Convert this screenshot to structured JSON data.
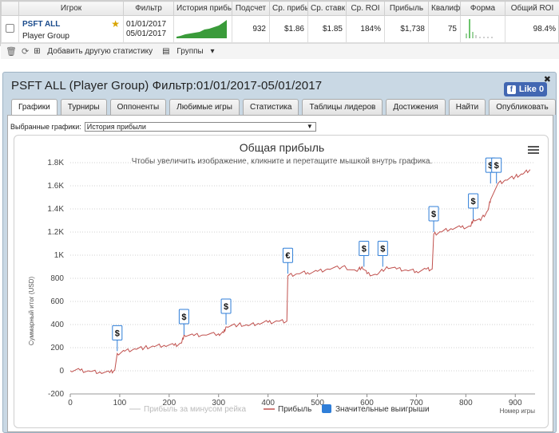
{
  "table": {
    "headers": {
      "player": "Игрок",
      "filter": "Фильтр",
      "history": "История прибыль",
      "count": "Подсчет",
      "avg_profit": "Ср. прибы",
      "avg_stake": "Ср. ставк",
      "avg_roi": "Ср. ROI",
      "profit": "Прибыль",
      "ability": "Квалиф",
      "form": "Форма",
      "total_roi": "Общий ROI"
    },
    "row": {
      "player": "PSFT ALL",
      "group": "Player Group",
      "filter_from": "01/01/2017",
      "filter_to": "05/01/2017",
      "count": "932",
      "avg_profit": "$1.86",
      "avg_stake": "$1.85",
      "avg_roi": "184%",
      "profit": "$1,738",
      "ability": "75",
      "total_roi": "98.4%"
    }
  },
  "toolbar": {
    "add_stats": "Добавить другую статистику",
    "groups": "Группы"
  },
  "panel": {
    "title": "PSFT ALL (Player Group) Фильтр:01/01/2017-05/01/2017",
    "like": "Like 0"
  },
  "tabs": [
    "Графики",
    "Турниры",
    "Оппоненты",
    "Любимые игры",
    "Статистика",
    "Таблицы лидеров",
    "Достижения",
    "Найти",
    "Опубликовать"
  ],
  "chart_select": {
    "label": "Выбранные графики:",
    "value": "История прибыли"
  },
  "chart_data": {
    "type": "line",
    "title": "Общая прибыль",
    "subtitle": "Чтобы увеличить изображение, кликните и перетащите мышкой внутрь графика.",
    "ylabel": "Суммарный итог (USD)",
    "xlabel": "Номер игры",
    "xlim": [
      0,
      940
    ],
    "ylim": [
      -200,
      1800
    ],
    "xticks": [
      "0",
      "100",
      "200",
      "300",
      "400",
      "500",
      "600",
      "700",
      "800",
      "900"
    ],
    "yticks": [
      "-200",
      "0",
      "200",
      "400",
      "600",
      "800",
      "1K",
      "1.2K",
      "1.4K",
      "1.6K",
      "1.8K"
    ],
    "legend": [
      "Прибыль за минусом рейка",
      "Прибыль",
      "Значительные выигрыши"
    ],
    "series": [
      {
        "name": "Прибыль",
        "color": "#c0504d",
        "points": [
          [
            0,
            0
          ],
          [
            20,
            5
          ],
          [
            40,
            -5
          ],
          [
            60,
            -10
          ],
          [
            80,
            -15
          ],
          [
            90,
            5
          ],
          [
            95,
            150
          ],
          [
            110,
            170
          ],
          [
            130,
            190
          ],
          [
            150,
            200
          ],
          [
            170,
            210
          ],
          [
            190,
            220
          ],
          [
            210,
            220
          ],
          [
            225,
            240
          ],
          [
            230,
            310
          ],
          [
            250,
            305
          ],
          [
            270,
            310
          ],
          [
            300,
            320
          ],
          [
            310,
            330
          ],
          [
            315,
            380
          ],
          [
            340,
            400
          ],
          [
            360,
            390
          ],
          [
            380,
            410
          ],
          [
            400,
            420
          ],
          [
            420,
            430
          ],
          [
            438,
            430
          ],
          [
            440,
            820
          ],
          [
            460,
            840
          ],
          [
            480,
            850
          ],
          [
            500,
            860
          ],
          [
            520,
            880
          ],
          [
            550,
            900
          ],
          [
            580,
            860
          ],
          [
            590,
            900
          ],
          [
            600,
            840
          ],
          [
            620,
            830
          ],
          [
            640,
            900
          ],
          [
            660,
            880
          ],
          [
            680,
            870
          ],
          [
            700,
            860
          ],
          [
            720,
            880
          ],
          [
            732,
            880
          ],
          [
            735,
            1180
          ],
          [
            750,
            1200
          ],
          [
            770,
            1230
          ],
          [
            790,
            1240
          ],
          [
            810,
            1250
          ],
          [
            815,
            1310
          ],
          [
            830,
            1300
          ],
          [
            845,
            1390
          ],
          [
            850,
            1480
          ],
          [
            865,
            1620
          ],
          [
            880,
            1650
          ],
          [
            900,
            1680
          ],
          [
            915,
            1700
          ],
          [
            930,
            1740
          ]
        ]
      }
    ],
    "big_wins": [
      {
        "x": 95,
        "symbol": "$"
      },
      {
        "x": 230,
        "symbol": "$"
      },
      {
        "x": 315,
        "symbol": "$"
      },
      {
        "x": 440,
        "symbol": "€"
      },
      {
        "x": 594,
        "symbol": "$"
      },
      {
        "x": 632,
        "symbol": "$"
      },
      {
        "x": 735,
        "symbol": "$"
      },
      {
        "x": 815,
        "symbol": "$"
      },
      {
        "x": 850,
        "symbol": "$"
      },
      {
        "x": 862,
        "symbol": "$"
      }
    ]
  }
}
